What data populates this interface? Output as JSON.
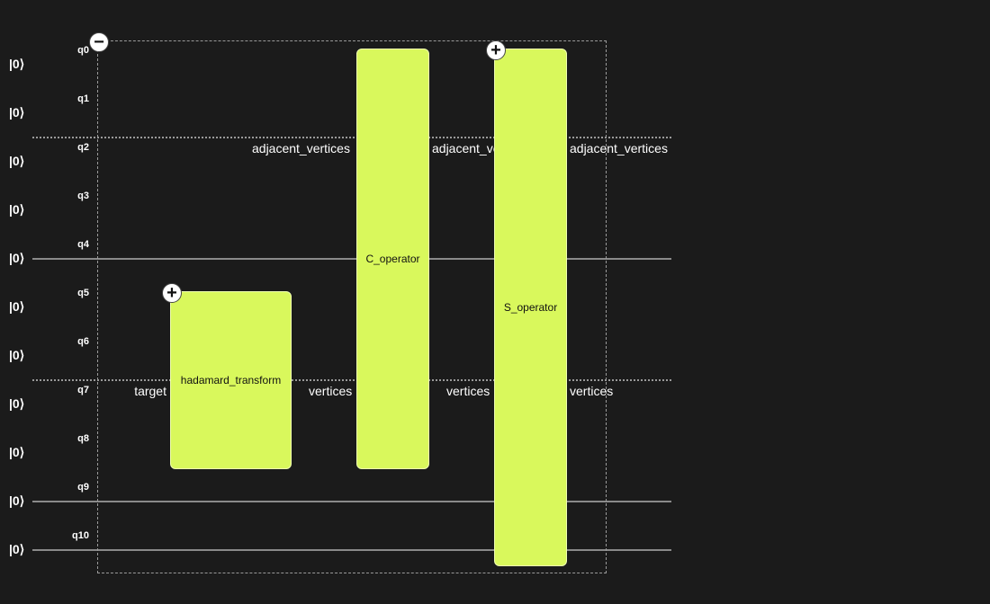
{
  "colors": {
    "background": "#1b1b1b",
    "gate_fill": "#d9f85c",
    "wire": "#8a8a8a"
  },
  "qubits": [
    {
      "label": "q0",
      "ket": "|0⟩"
    },
    {
      "label": "q1",
      "ket": "|0⟩"
    },
    {
      "label": "q2",
      "ket": "|0⟩"
    },
    {
      "label": "q3",
      "ket": "|0⟩"
    },
    {
      "label": "q4",
      "ket": "|0⟩"
    },
    {
      "label": "q5",
      "ket": "|0⟩"
    },
    {
      "label": "q6",
      "ket": "|0⟩"
    },
    {
      "label": "q7",
      "ket": "|0⟩"
    },
    {
      "label": "q8",
      "ket": "|0⟩"
    },
    {
      "label": "q9",
      "ket": "|0⟩"
    },
    {
      "label": "q10",
      "ket": "|0⟩"
    }
  ],
  "group": {
    "toggle_icon": "minus-icon",
    "toggle_symbol": "−"
  },
  "gates": {
    "hadamard": {
      "label": "hadamard_transform",
      "in_port": "target",
      "out_port": "vertices",
      "expand_symbol": "+"
    },
    "c_operator": {
      "label": "C_operator",
      "in_top": "adjacent_vertices",
      "in_bottom": "vertices",
      "out_top": "adjacent_vertices",
      "out_bottom": "vertices"
    },
    "s_operator": {
      "label": "S_operator",
      "out_top": "adjacent_vertices",
      "out_bottom": "vertices",
      "expand_symbol": "+"
    }
  }
}
